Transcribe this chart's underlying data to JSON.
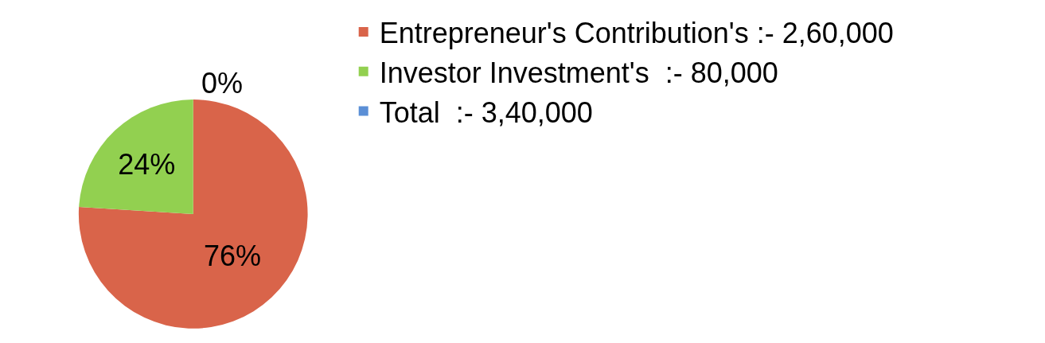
{
  "chart_data": {
    "type": "pie",
    "categories": [
      "Entrepreneur's Contribution's :- 2,60,000",
      "Investor Investment's  :- 80,000",
      "Total  :- 3,40,000"
    ],
    "values": [
      76,
      24,
      0
    ],
    "colors": [
      "#d9644a",
      "#92d050",
      "#5b8fd6"
    ],
    "value_labels": [
      "76%",
      "24%",
      "0%"
    ],
    "legend": "top right"
  }
}
